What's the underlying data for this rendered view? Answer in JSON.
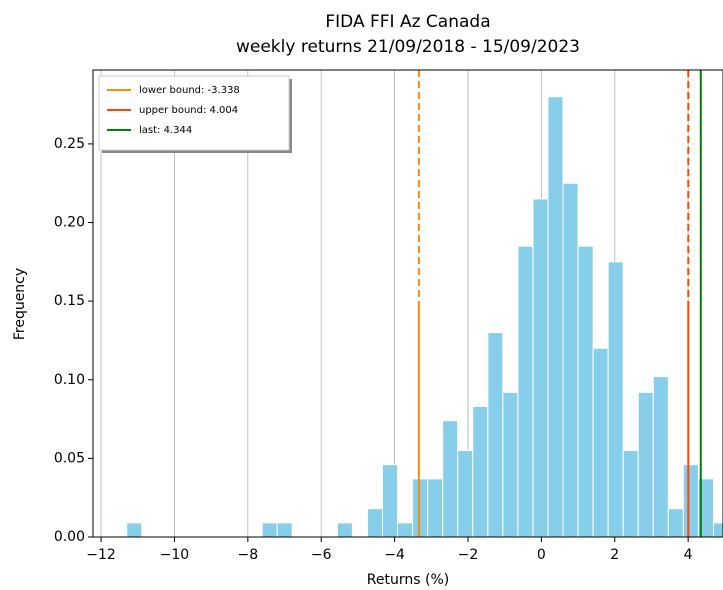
{
  "chart_data": {
    "type": "histogram",
    "title": "FIDA FFI Az Canada",
    "subtitle": "weekly returns 21/09/2018 - 15/09/2023",
    "x_label": "Returns (%)",
    "y_label": "Frequency",
    "bins": [
      -11.3,
      -10.89,
      -10.48,
      -10.07,
      -9.66,
      -9.25,
      -8.84,
      -8.43,
      -8.02,
      -7.61,
      -7.2,
      -6.79,
      -6.38,
      -5.97,
      -5.56,
      -5.15,
      -4.74,
      -4.33,
      -3.92,
      -3.51,
      -3.1,
      -2.69,
      -2.28,
      -1.87,
      -1.46,
      -1.05,
      -0.64,
      -0.23,
      0.18,
      0.59,
      1.0,
      1.41,
      1.82,
      2.23,
      2.64,
      3.05,
      3.46,
      3.87,
      4.28,
      4.69,
      5.1
    ],
    "values": [
      0.009,
      0,
      0,
      0,
      0,
      0,
      0,
      0,
      0,
      0.009,
      0.009,
      0,
      0,
      0,
      0.009,
      0,
      0.018,
      0.046,
      0.009,
      0.037,
      0.037,
      0.074,
      0.055,
      0.083,
      0.13,
      0.092,
      0.185,
      0.215,
      0.28,
      0.225,
      0.185,
      0.12,
      0.175,
      0.055,
      0.092,
      0.102,
      0.018,
      0.046,
      0.037,
      0.009
    ],
    "color": "#87ceeb",
    "lines": [
      {
        "name": "lower bound: -3.338",
        "value": -3.338,
        "color": "#ff8c00",
        "dashed": true
      },
      {
        "name": "upper bound: 4.004",
        "value": 4.004,
        "color": "#ff4500",
        "dashed": true
      },
      {
        "name": "last: 4.344",
        "value": 4.344,
        "color": "#008000",
        "dashed": false
      }
    ],
    "xlim": [
      -12.22,
      4.95
    ],
    "ylim": [
      0,
      0.297
    ],
    "xticks": [
      {
        "value": -12,
        "label": "−12"
      },
      {
        "value": -10,
        "label": "−10"
      },
      {
        "value": -8,
        "label": "−8"
      },
      {
        "value": -6,
        "label": "−6"
      },
      {
        "value": -4,
        "label": "−4"
      },
      {
        "value": -2,
        "label": "−2"
      },
      0,
      2,
      4
    ],
    "yticks": [
      {
        "value": 0,
        "label": "0.00"
      },
      {
        "value": 0.05,
        "label": "0.05"
      },
      {
        "value": 0.1,
        "label": "0.10"
      },
      {
        "value": 0.15,
        "label": "0.15"
      },
      {
        "value": 0.2,
        "label": "0.20"
      },
      {
        "value": 0.25,
        "label": "0.25"
      }
    ],
    "grid": "x",
    "legend": "upper left"
  }
}
